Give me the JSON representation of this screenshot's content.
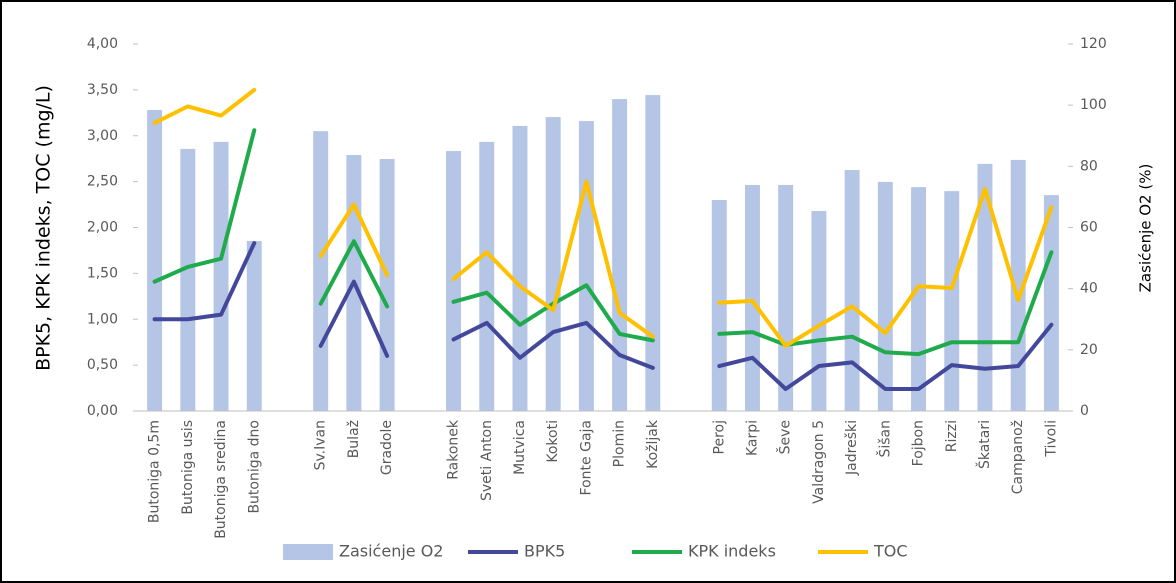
{
  "chart_data": {
    "type": "combo",
    "categories": [
      "Butoniga 0,5m",
      "Butoniga usis",
      "Butoniga sredina",
      "Butoniga dno",
      null,
      "Sv.Ivan",
      "Bulaž",
      "Gradole",
      null,
      "Rakonek",
      "Sveti Anton",
      "Mutvica",
      "Kokoti",
      "Fonte Gaja",
      "Plomin",
      "Kožljak",
      null,
      "Peroj",
      "Karpi",
      "Ševe",
      "Valdragon 5",
      "Jadreški",
      "Šišan",
      "Fojbon",
      "Rizzi",
      "Škatari",
      "Campanož",
      "Tivoli"
    ],
    "ylabel": "BPK5, KPK indeks, TOC (mg/L)",
    "y2label": "Zasićenje O2 (%)",
    "ylim": [
      0,
      4
    ],
    "yticks": [
      {
        "value": 0,
        "label": "0,00"
      },
      {
        "value": 0.5,
        "label": "0,50"
      },
      {
        "value": 1,
        "label": "1,00"
      },
      {
        "value": 1.5,
        "label": "1,50"
      },
      {
        "value": 2,
        "label": "2,00"
      },
      {
        "value": 2.5,
        "label": "2,50"
      },
      {
        "value": 3,
        "label": "3,00"
      },
      {
        "value": 3.5,
        "label": "3,50"
      },
      {
        "value": 4,
        "label": "4,00"
      }
    ],
    "y2lim": [
      0,
      120
    ],
    "y2ticks": [
      0,
      20,
      40,
      60,
      80,
      100,
      120
    ],
    "legend": "bottom",
    "series": [
      {
        "name": "Zasićenje O2",
        "type": "bar",
        "axis": "y2",
        "color": "#b4c5e6",
        "values": [
          98.4,
          85.7,
          88,
          55.6,
          null,
          91.5,
          83.7,
          82.4,
          null,
          85,
          88,
          93.2,
          96.1,
          94.8,
          102,
          103.3,
          null,
          69,
          73.9,
          73.9,
          65.4,
          78.8,
          74.9,
          73.2,
          71.9,
          80.8,
          82.1,
          70.6
        ]
      },
      {
        "name": "BPK5",
        "type": "line",
        "color": "#43489b",
        "values": [
          1.0,
          1.0,
          1.05,
          1.83,
          null,
          0.71,
          1.41,
          0.6,
          null,
          0.78,
          0.96,
          0.58,
          0.86,
          0.96,
          0.61,
          0.47,
          null,
          0.49,
          0.58,
          0.24,
          0.49,
          0.53,
          0.24,
          0.24,
          0.5,
          0.46,
          0.49,
          0.94
        ]
      },
      {
        "name": "KPK indeks",
        "type": "line",
        "color": "#1fab4c",
        "values": [
          1.41,
          1.57,
          1.66,
          3.06,
          null,
          1.17,
          1.85,
          1.14,
          null,
          1.19,
          1.29,
          0.94,
          1.17,
          1.37,
          0.84,
          0.77,
          null,
          0.84,
          0.86,
          0.72,
          0.77,
          0.81,
          0.64,
          0.62,
          0.75,
          0.75,
          0.75,
          1.73
        ]
      },
      {
        "name": "TOC",
        "type": "line",
        "color": "#ffc000",
        "values": [
          3.14,
          3.32,
          3.22,
          3.5,
          null,
          1.69,
          2.25,
          1.48,
          null,
          1.44,
          1.73,
          1.36,
          1.1,
          2.5,
          1.07,
          0.81,
          null,
          1.18,
          1.2,
          0.71,
          0.93,
          1.14,
          0.85,
          1.36,
          1.34,
          2.42,
          1.21,
          2.22
        ]
      }
    ]
  }
}
